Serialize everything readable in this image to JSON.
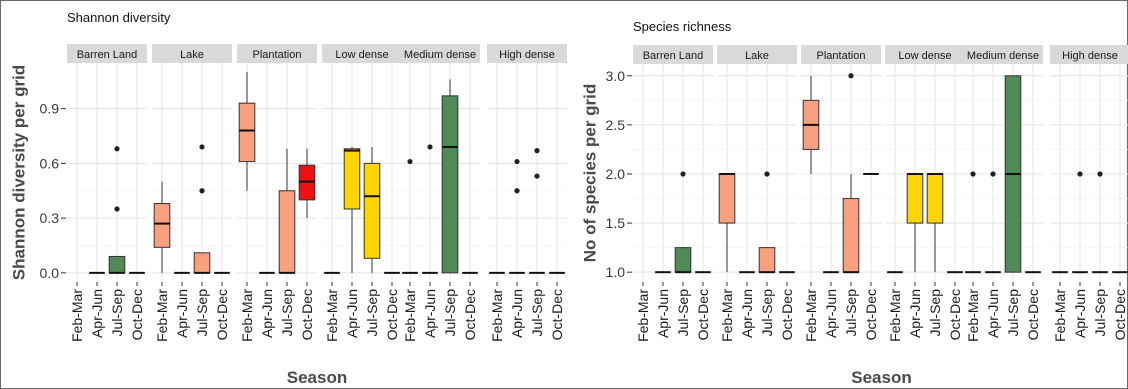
{
  "colors": {
    "Barren Land": "#4f8a57",
    "Lake": "#f9a07e",
    "Plantation": "#f9a07e",
    "Low dense": "#ffd400",
    "Medium dense": "#4f8a57",
    "High dense": "#4f8a57",
    "plantation_last": "#ee1111"
  },
  "chart_data": [
    {
      "type": "boxplot",
      "title": "Shannon diversity",
      "xlabel": "Season",
      "ylabel": "Shannon diversity per grid",
      "ylim": [
        -0.05,
        1.15
      ],
      "yticks": [
        0.0,
        0.3,
        0.6,
        0.9
      ],
      "ytick_labels": [
        "0.0",
        "0.3",
        "0.6",
        "0.9"
      ],
      "grid": true,
      "categories": [
        "Feb-Mar",
        "Apr-Jun",
        "Jul-Sep",
        "Oct-Dec"
      ],
      "panels": [
        "Barren Land",
        "Lake",
        "Plantation",
        "Low dense",
        "Medium dense",
        "High dense"
      ],
      "series": [
        {
          "panel": "Barren Land",
          "boxes": [
            null,
            {
              "q1": 0,
              "median": 0,
              "q3": 0,
              "whislo": 0,
              "whishi": 0,
              "outliers": []
            },
            {
              "q1": 0,
              "median": 0,
              "q3": 0.09,
              "whislo": 0,
              "whishi": 0.09,
              "outliers": [
                0.35,
                0.68
              ]
            },
            {
              "q1": 0,
              "median": 0,
              "q3": 0,
              "whislo": 0,
              "whishi": 0,
              "outliers": []
            }
          ]
        },
        {
          "panel": "Lake",
          "boxes": [
            {
              "q1": 0.14,
              "median": 0.27,
              "q3": 0.38,
              "whislo": 0,
              "whishi": 0.5,
              "outliers": []
            },
            {
              "q1": 0,
              "median": 0,
              "q3": 0,
              "whislo": 0,
              "whishi": 0,
              "outliers": []
            },
            {
              "q1": 0,
              "median": 0,
              "q3": 0.11,
              "whislo": 0,
              "whishi": 0.11,
              "outliers": [
                0.45,
                0.69
              ]
            },
            {
              "q1": 0,
              "median": 0,
              "q3": 0,
              "whislo": 0,
              "whishi": 0,
              "outliers": []
            }
          ]
        },
        {
          "panel": "Plantation",
          "boxes": [
            {
              "q1": 0.61,
              "median": 0.78,
              "q3": 0.93,
              "whislo": 0.45,
              "whishi": 1.1,
              "outliers": []
            },
            {
              "q1": 0,
              "median": 0,
              "q3": 0,
              "whislo": 0,
              "whishi": 0,
              "outliers": []
            },
            {
              "q1": 0,
              "median": 0,
              "q3": 0.45,
              "whislo": 0,
              "whishi": 0.68,
              "outliers": []
            },
            {
              "q1": 0.4,
              "median": 0.5,
              "q3": 0.59,
              "whislo": 0.3,
              "whishi": 0.68,
              "outliers": []
            }
          ]
        },
        {
          "panel": "Low dense",
          "boxes": [
            {
              "q1": 0,
              "median": 0,
              "q3": 0,
              "whislo": 0,
              "whishi": 0,
              "outliers": []
            },
            {
              "q1": 0.35,
              "median": 0.67,
              "q3": 0.68,
              "whislo": 0,
              "whishi": 0.69,
              "outliers": []
            },
            {
              "q1": 0.08,
              "median": 0.42,
              "q3": 0.6,
              "whislo": 0,
              "whishi": 0.69,
              "outliers": []
            },
            {
              "q1": 0,
              "median": 0,
              "q3": 0,
              "whislo": 0,
              "whishi": 0,
              "outliers": []
            }
          ]
        },
        {
          "panel": "Medium dense",
          "boxes": [
            {
              "q1": 0,
              "median": 0,
              "q3": 0,
              "whislo": 0,
              "whishi": 0,
              "outliers": [
                0.61
              ]
            },
            {
              "q1": 0,
              "median": 0,
              "q3": 0,
              "whislo": 0,
              "whishi": 0,
              "outliers": [
                0.69
              ]
            },
            {
              "q1": 0,
              "median": 0.69,
              "q3": 0.97,
              "whislo": 0,
              "whishi": 1.06,
              "outliers": []
            },
            {
              "q1": 0,
              "median": 0,
              "q3": 0,
              "whislo": 0,
              "whishi": 0,
              "outliers": []
            }
          ]
        },
        {
          "panel": "High dense",
          "boxes": [
            {
              "q1": 0,
              "median": 0,
              "q3": 0,
              "whislo": 0,
              "whishi": 0,
              "outliers": []
            },
            {
              "q1": 0,
              "median": 0,
              "q3": 0,
              "whislo": 0,
              "whishi": 0,
              "outliers": [
                0.45,
                0.61
              ]
            },
            {
              "q1": 0,
              "median": 0,
              "q3": 0,
              "whislo": 0,
              "whishi": 0,
              "outliers": [
                0.53,
                0.67
              ]
            },
            {
              "q1": 0,
              "median": 0,
              "q3": 0,
              "whislo": 0,
              "whishi": 0,
              "outliers": []
            }
          ]
        }
      ]
    },
    {
      "type": "boxplot",
      "title": "Species richness",
      "xlabel": "Season",
      "ylabel": "No of species per grid",
      "ylim": [
        0.9,
        3.12
      ],
      "yticks": [
        1.0,
        1.5,
        2.0,
        2.5,
        3.0
      ],
      "ytick_labels": [
        "1.0",
        "1.5",
        "2.0",
        "2.5",
        "3.0"
      ],
      "grid": true,
      "categories": [
        "Feb-Mar",
        "Apr-Jun",
        "Jul-Sep",
        "Oct-Dec"
      ],
      "panels": [
        "Barren Land",
        "Lake",
        "Plantation",
        "Low dense",
        "Medium dense",
        "High dense"
      ],
      "series": [
        {
          "panel": "Barren Land",
          "boxes": [
            null,
            {
              "q1": 1,
              "median": 1,
              "q3": 1,
              "whislo": 1,
              "whishi": 1,
              "outliers": []
            },
            {
              "q1": 1,
              "median": 1,
              "q3": 1.25,
              "whislo": 1,
              "whishi": 1.25,
              "outliers": [
                2
              ]
            },
            {
              "q1": 1,
              "median": 1,
              "q3": 1,
              "whislo": 1,
              "whishi": 1,
              "outliers": []
            }
          ]
        },
        {
          "panel": "Lake",
          "boxes": [
            {
              "q1": 1.5,
              "median": 2,
              "q3": 2,
              "whislo": 1,
              "whishi": 2,
              "outliers": []
            },
            {
              "q1": 1,
              "median": 1,
              "q3": 1,
              "whislo": 1,
              "whishi": 1,
              "outliers": []
            },
            {
              "q1": 1,
              "median": 1,
              "q3": 1.25,
              "whislo": 1,
              "whishi": 1.25,
              "outliers": [
                2
              ]
            },
            {
              "q1": 1,
              "median": 1,
              "q3": 1,
              "whislo": 1,
              "whishi": 1,
              "outliers": []
            }
          ]
        },
        {
          "panel": "Plantation",
          "boxes": [
            {
              "q1": 2.25,
              "median": 2.5,
              "q3": 2.75,
              "whislo": 2,
              "whishi": 3,
              "outliers": []
            },
            {
              "q1": 1,
              "median": 1,
              "q3": 1,
              "whislo": 1,
              "whishi": 1,
              "outliers": []
            },
            {
              "q1": 1,
              "median": 1,
              "q3": 1.75,
              "whislo": 1,
              "whishi": 2,
              "outliers": [
                3
              ]
            },
            {
              "q1": 2,
              "median": 2,
              "q3": 2,
              "whislo": 2,
              "whishi": 2,
              "outliers": []
            }
          ]
        },
        {
          "panel": "Low dense",
          "boxes": [
            {
              "q1": 1,
              "median": 1,
              "q3": 1,
              "whislo": 1,
              "whishi": 1,
              "outliers": []
            },
            {
              "q1": 1.5,
              "median": 2,
              "q3": 2,
              "whislo": 1,
              "whishi": 2,
              "outliers": []
            },
            {
              "q1": 1.5,
              "median": 2,
              "q3": 2,
              "whislo": 1,
              "whishi": 2,
              "outliers": []
            },
            {
              "q1": 1,
              "median": 1,
              "q3": 1,
              "whislo": 1,
              "whishi": 1,
              "outliers": []
            }
          ]
        },
        {
          "panel": "Medium dense",
          "boxes": [
            {
              "q1": 1,
              "median": 1,
              "q3": 1,
              "whislo": 1,
              "whishi": 1,
              "outliers": [
                2
              ]
            },
            {
              "q1": 1,
              "median": 1,
              "q3": 1,
              "whislo": 1,
              "whishi": 1,
              "outliers": [
                2
              ]
            },
            {
              "q1": 1,
              "median": 2,
              "q3": 3,
              "whislo": 1,
              "whishi": 3,
              "outliers": []
            },
            {
              "q1": 1,
              "median": 1,
              "q3": 1,
              "whislo": 1,
              "whishi": 1,
              "outliers": []
            }
          ]
        },
        {
          "panel": "High dense",
          "boxes": [
            {
              "q1": 1,
              "median": 1,
              "q3": 1,
              "whislo": 1,
              "whishi": 1,
              "outliers": []
            },
            {
              "q1": 1,
              "median": 1,
              "q3": 1,
              "whislo": 1,
              "whishi": 1,
              "outliers": [
                2
              ]
            },
            {
              "q1": 1,
              "median": 1,
              "q3": 1,
              "whislo": 1,
              "whishi": 1,
              "outliers": [
                2
              ]
            },
            {
              "q1": 1,
              "median": 1,
              "q3": 1,
              "whislo": 1,
              "whishi": 1,
              "outliers": []
            }
          ]
        }
      ]
    }
  ]
}
